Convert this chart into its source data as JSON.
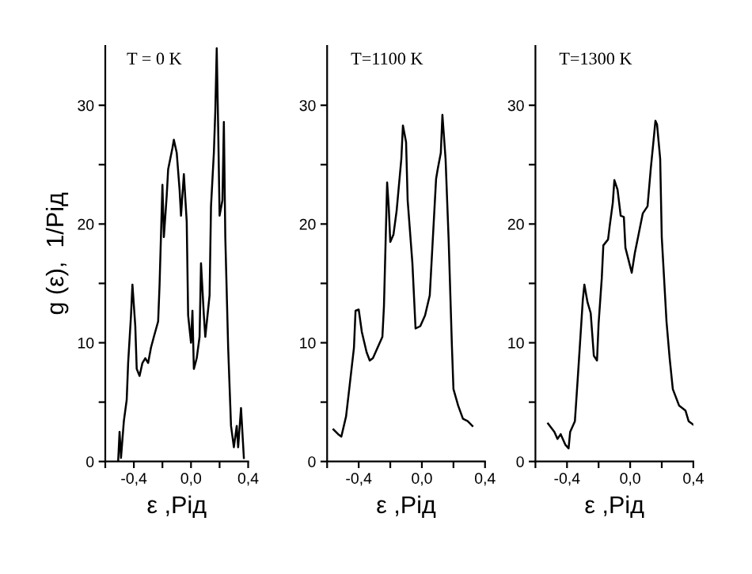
{
  "chart_data": [
    {
      "type": "line",
      "title": "T = 0 K",
      "xlabel": "ε ,Рід",
      "ylabel": "g (ε),  1/Рід",
      "x": [
        -0.51,
        -0.5,
        -0.49,
        -0.47,
        -0.45,
        -0.44,
        -0.42,
        -0.41,
        -0.39,
        -0.38,
        -0.36,
        -0.34,
        -0.32,
        -0.3,
        -0.28,
        -0.26,
        -0.23,
        -0.22,
        -0.2,
        -0.19,
        -0.17,
        -0.16,
        -0.13,
        -0.12,
        -0.1,
        -0.08,
        -0.07,
        -0.05,
        -0.03,
        -0.02,
        0.0,
        0.01,
        0.02,
        0.04,
        0.06,
        0.07,
        0.09,
        0.1,
        0.13,
        0.14,
        0.16,
        0.17,
        0.18,
        0.19,
        0.2,
        0.22,
        0.23,
        0.24,
        0.26,
        0.28,
        0.3,
        0.32,
        0.33,
        0.35,
        0.37
      ],
      "series": [
        {
          "color": "#000000",
          "values": [
            0,
            2.5,
            0.3,
            3.4,
            5.2,
            8.3,
            12.3,
            14.9,
            11.4,
            7.8,
            7.2,
            8.3,
            8.7,
            8.3,
            9.6,
            10.5,
            11.8,
            14.9,
            23.3,
            18.9,
            22.4,
            24.6,
            26.4,
            27.1,
            26.0,
            22.9,
            20.7,
            24.2,
            20.2,
            12.3,
            10.0,
            12.7,
            7.8,
            8.7,
            10.5,
            16.7,
            12.3,
            10.5,
            14.0,
            21.5,
            26.0,
            29.5,
            34.8,
            28.2,
            20.7,
            22.0,
            28.6,
            18.9,
            9.6,
            3.0,
            1.2,
            3.0,
            1.2,
            4.5,
            0.3
          ]
        }
      ],
      "xlim": [
        -0.6,
        0.4
      ],
      "ylim": [
        0,
        35
      ],
      "xticks": [
        {
          "value": -0.6,
          "label": null
        },
        {
          "value": -0.4,
          "label": "-0,4"
        },
        {
          "value": -0.2,
          "label": null
        },
        {
          "value": 0.0,
          "label": "0,0"
        },
        {
          "value": 0.2,
          "label": null
        },
        {
          "value": 0.4,
          "label": "0,4"
        }
      ],
      "yticks": [
        0,
        {
          "value": 5,
          "label": null
        },
        10,
        {
          "value": 15,
          "label": null
        },
        20,
        {
          "value": 25,
          "label": null
        },
        30
      ],
      "grid": false,
      "legend": false
    },
    {
      "type": "line",
      "title": "T=1100 K",
      "xlabel": "ε ,Рід",
      "x": [
        -0.56,
        -0.53,
        -0.51,
        -0.48,
        -0.46,
        -0.43,
        -0.42,
        -0.4,
        -0.38,
        -0.35,
        -0.33,
        -0.31,
        -0.28,
        -0.25,
        -0.24,
        -0.22,
        -0.21,
        -0.2,
        -0.18,
        -0.16,
        -0.13,
        -0.12,
        -0.1,
        -0.09,
        -0.06,
        -0.04,
        -0.01,
        0.02,
        0.05,
        0.09,
        0.1,
        0.12,
        0.13,
        0.15,
        0.17,
        0.19,
        0.2,
        0.23,
        0.26,
        0.29,
        0.32
      ],
      "series": [
        {
          "color": "#000000",
          "values": [
            2.7,
            2.3,
            2.1,
            3.8,
            6.1,
            9.6,
            12.7,
            12.8,
            10.9,
            9.2,
            8.5,
            8.7,
            9.6,
            10.5,
            13.1,
            23.5,
            21.5,
            18.5,
            19.1,
            21.1,
            25.5,
            28.3,
            26.9,
            22.0,
            16.7,
            11.2,
            11.4,
            12.3,
            14.0,
            23.8,
            24.6,
            26.0,
            29.2,
            25.5,
            18.5,
            9.8,
            6.1,
            4.7,
            3.6,
            3.4,
            3.0
          ]
        }
      ],
      "xlim": [
        -0.6,
        0.4
      ],
      "ylim": [
        0,
        35
      ],
      "xticks": [
        {
          "value": -0.6,
          "label": null
        },
        {
          "value": -0.4,
          "label": "-0,4"
        },
        {
          "value": -0.2,
          "label": null
        },
        {
          "value": 0.0,
          "label": "0,0"
        },
        {
          "value": 0.2,
          "label": null
        },
        {
          "value": 0.4,
          "label": "0,4"
        }
      ],
      "yticks": [
        0,
        {
          "value": 5,
          "label": null
        },
        10,
        {
          "value": 15,
          "label": null
        },
        20,
        {
          "value": 25,
          "label": null
        },
        30
      ],
      "grid": false,
      "legend": false
    },
    {
      "type": "line",
      "title": "T=1300 K",
      "xlabel": "ε ,Рід",
      "x": [
        -0.52,
        -0.48,
        -0.46,
        -0.44,
        -0.41,
        -0.39,
        -0.38,
        -0.35,
        -0.33,
        -0.3,
        -0.29,
        -0.27,
        -0.25,
        -0.23,
        -0.21,
        -0.2,
        -0.18,
        -0.17,
        -0.14,
        -0.13,
        -0.11,
        -0.1,
        -0.08,
        -0.06,
        -0.04,
        -0.03,
        0.01,
        0.03,
        0.05,
        0.08,
        0.11,
        0.13,
        0.15,
        0.16,
        0.17,
        0.19,
        0.2,
        0.23,
        0.25,
        0.27,
        0.31,
        0.35,
        0.37,
        0.4
      ],
      "series": [
        {
          "color": "#000000",
          "values": [
            3.2,
            2.5,
            1.9,
            2.3,
            1.4,
            1.1,
            2.5,
            3.4,
            7.4,
            13.6,
            14.9,
            13.4,
            12.5,
            8.9,
            8.5,
            11.6,
            15.4,
            18.2,
            18.7,
            19.8,
            21.8,
            23.7,
            22.9,
            20.7,
            20.6,
            18.0,
            15.9,
            17.6,
            18.9,
            20.9,
            21.5,
            24.6,
            27.3,
            28.7,
            28.4,
            25.5,
            18.9,
            11.8,
            8.7,
            6.1,
            4.7,
            4.3,
            3.4,
            3.1
          ]
        }
      ],
      "xlim": [
        -0.6,
        0.4
      ],
      "ylim": [
        0,
        35
      ],
      "xticks": [
        {
          "value": -0.6,
          "label": null
        },
        {
          "value": -0.4,
          "label": "-0,4"
        },
        {
          "value": -0.2,
          "label": null
        },
        {
          "value": 0.0,
          "label": "0,0"
        },
        {
          "value": 0.2,
          "label": null
        },
        {
          "value": 0.4,
          "label": "0,4"
        }
      ],
      "yticks": [
        0,
        {
          "value": 5,
          "label": null
        },
        10,
        {
          "value": 15,
          "label": null
        },
        20,
        {
          "value": 25,
          "label": null
        },
        30
      ],
      "grid": false,
      "legend": false
    }
  ]
}
